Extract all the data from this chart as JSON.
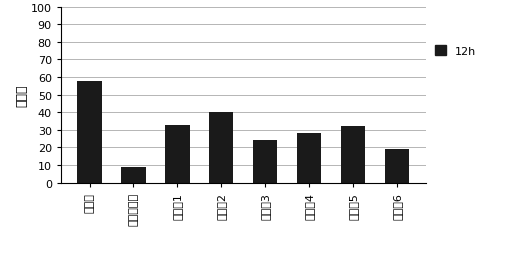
{
  "categories": [
    "试验组",
    "载体对照组",
    "对照组1",
    "对照组2",
    "对照组3",
    "对照组4",
    "对照组5",
    "对照组6"
  ],
  "values": [
    58,
    9,
    33,
    40,
    24,
    28,
    32,
    19
  ],
  "bar_color": "#1a1a1a",
  "ylabel": "百分比",
  "ylim": [
    0,
    100
  ],
  "yticks": [
    0,
    10,
    20,
    30,
    40,
    50,
    60,
    70,
    80,
    90,
    100
  ],
  "legend_label": "12h",
  "background_color": "#ffffff",
  "bar_width": 0.55
}
